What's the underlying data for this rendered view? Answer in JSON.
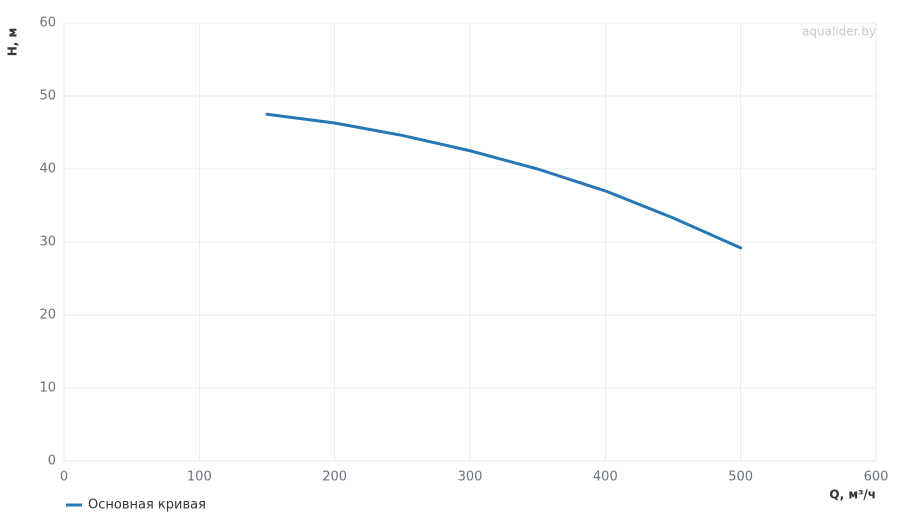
{
  "chart_data": {
    "type": "line",
    "x_label": "Q, м³/ч",
    "y_label": "H, м",
    "watermark": "aqualider.by",
    "x": [
      150,
      200,
      250,
      300,
      350,
      400,
      450,
      500
    ],
    "series": [
      {
        "name": "Основная кривая",
        "color": "#2878b4",
        "values": [
          47.5,
          46.3,
          44.6,
          42.5,
          40.0,
          37.0,
          33.3,
          29.2
        ]
      }
    ],
    "xlim": [
      0,
      600
    ],
    "xticks": [
      0,
      100,
      200,
      300,
      400,
      500,
      600
    ],
    "ylim": [
      0,
      60
    ],
    "yticks": [
      0,
      10,
      20,
      30,
      40,
      50,
      60
    ],
    "grid": true,
    "legend": "bottom-left"
  }
}
